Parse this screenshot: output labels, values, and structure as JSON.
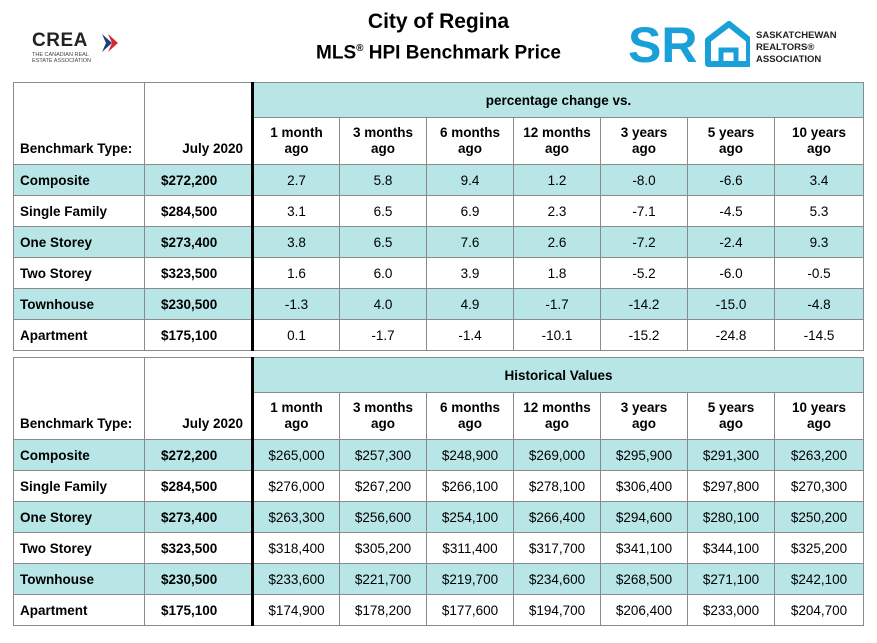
{
  "header": {
    "title_line1": "City of Regina",
    "title_line2_prefix": "MLS",
    "title_line2_reg": "®",
    "title_line2_suffix": " HPI Benchmark Price",
    "crea_logo_word": "CREA",
    "crea_logo_sub": "THE CANADIAN REAL ESTATE ASSOCIATION",
    "sra_logo_mark": "SR",
    "sra_logo_text": [
      "SASKATCHEWAN",
      "REALTORS®",
      "ASSOCIATION"
    ],
    "colors": {
      "accent": "#b8e6e7",
      "sra_blue": "#1aa0d8",
      "crea_red": "#d6282f",
      "crea_blue": "#1f3f7a"
    }
  },
  "common": {
    "benchmark_type_label": "Benchmark Type:",
    "date_label": "July 2020",
    "columns": [
      [
        "1 month",
        "ago"
      ],
      [
        "3 months",
        "ago"
      ],
      [
        "6 months",
        "ago"
      ],
      [
        "12 months",
        "ago"
      ],
      [
        "3 years",
        "ago"
      ],
      [
        "5 years",
        "ago"
      ],
      [
        "10 years",
        "ago"
      ]
    ]
  },
  "percentage_table": {
    "heading": "percentage change vs.",
    "rows": [
      {
        "name": "Composite",
        "price": "$272,200",
        "values": [
          "2.7",
          "5.8",
          "9.4",
          "1.2",
          "-8.0",
          "-6.6",
          "3.4"
        ]
      },
      {
        "name": "Single Family",
        "price": "$284,500",
        "values": [
          "3.1",
          "6.5",
          "6.9",
          "2.3",
          "-7.1",
          "-4.5",
          "5.3"
        ]
      },
      {
        "name": "One Storey",
        "price": "$273,400",
        "values": [
          "3.8",
          "6.5",
          "7.6",
          "2.6",
          "-7.2",
          "-2.4",
          "9.3"
        ]
      },
      {
        "name": "Two Storey",
        "price": "$323,500",
        "values": [
          "1.6",
          "6.0",
          "3.9",
          "1.8",
          "-5.2",
          "-6.0",
          "-0.5"
        ]
      },
      {
        "name": "Townhouse",
        "price": "$230,500",
        "values": [
          "-1.3",
          "4.0",
          "4.9",
          "-1.7",
          "-14.2",
          "-15.0",
          "-4.8"
        ]
      },
      {
        "name": "Apartment",
        "price": "$175,100",
        "values": [
          "0.1",
          "-1.7",
          "-1.4",
          "-10.1",
          "-15.2",
          "-24.8",
          "-14.5"
        ]
      }
    ]
  },
  "historical_table": {
    "heading": "Historical Values",
    "rows": [
      {
        "name": "Composite",
        "price": "$272,200",
        "values": [
          "$265,000",
          "$257,300",
          "$248,900",
          "$269,000",
          "$295,900",
          "$291,300",
          "$263,200"
        ]
      },
      {
        "name": "Single Family",
        "price": "$284,500",
        "values": [
          "$276,000",
          "$267,200",
          "$266,100",
          "$278,100",
          "$306,400",
          "$297,800",
          "$270,300"
        ]
      },
      {
        "name": "One Storey",
        "price": "$273,400",
        "values": [
          "$263,300",
          "$256,600",
          "$254,100",
          "$266,400",
          "$294,600",
          "$280,100",
          "$250,200"
        ]
      },
      {
        "name": "Two Storey",
        "price": "$323,500",
        "values": [
          "$318,400",
          "$305,200",
          "$311,400",
          "$317,700",
          "$341,100",
          "$344,100",
          "$325,200"
        ]
      },
      {
        "name": "Townhouse",
        "price": "$230,500",
        "values": [
          "$233,600",
          "$221,700",
          "$219,700",
          "$234,600",
          "$268,500",
          "$271,100",
          "$242,100"
        ]
      },
      {
        "name": "Apartment",
        "price": "$175,100",
        "values": [
          "$174,900",
          "$178,200",
          "$177,600",
          "$194,700",
          "$206,400",
          "$233,000",
          "$204,700"
        ]
      }
    ]
  }
}
